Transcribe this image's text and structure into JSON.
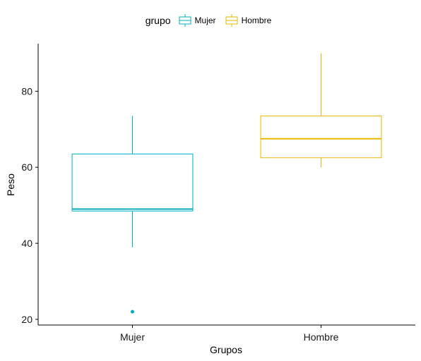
{
  "chart_data": {
    "type": "boxplot",
    "xlabel": "Grupos",
    "ylabel": "Peso",
    "categories": [
      "Mujer",
      "Hombre"
    ],
    "ylim": [
      18.5,
      92.5
    ],
    "yticks": [
      20,
      40,
      60,
      80
    ],
    "grid": false,
    "legend": {
      "title": "grupo",
      "position": "top",
      "entries": [
        "Mujer",
        "Hombre"
      ]
    },
    "series": [
      {
        "name": "Mujer",
        "color": "#00AFBB",
        "whisker_low": 39,
        "q1": 48.5,
        "median": 49,
        "q3": 63.5,
        "whisker_high": 73.5,
        "outliers": [
          22
        ]
      },
      {
        "name": "Hombre",
        "color": "#E7B800",
        "whisker_low": 60,
        "q1": 62.5,
        "median": 67.5,
        "q3": 73.5,
        "whisker_high": 90,
        "outliers": []
      }
    ]
  }
}
